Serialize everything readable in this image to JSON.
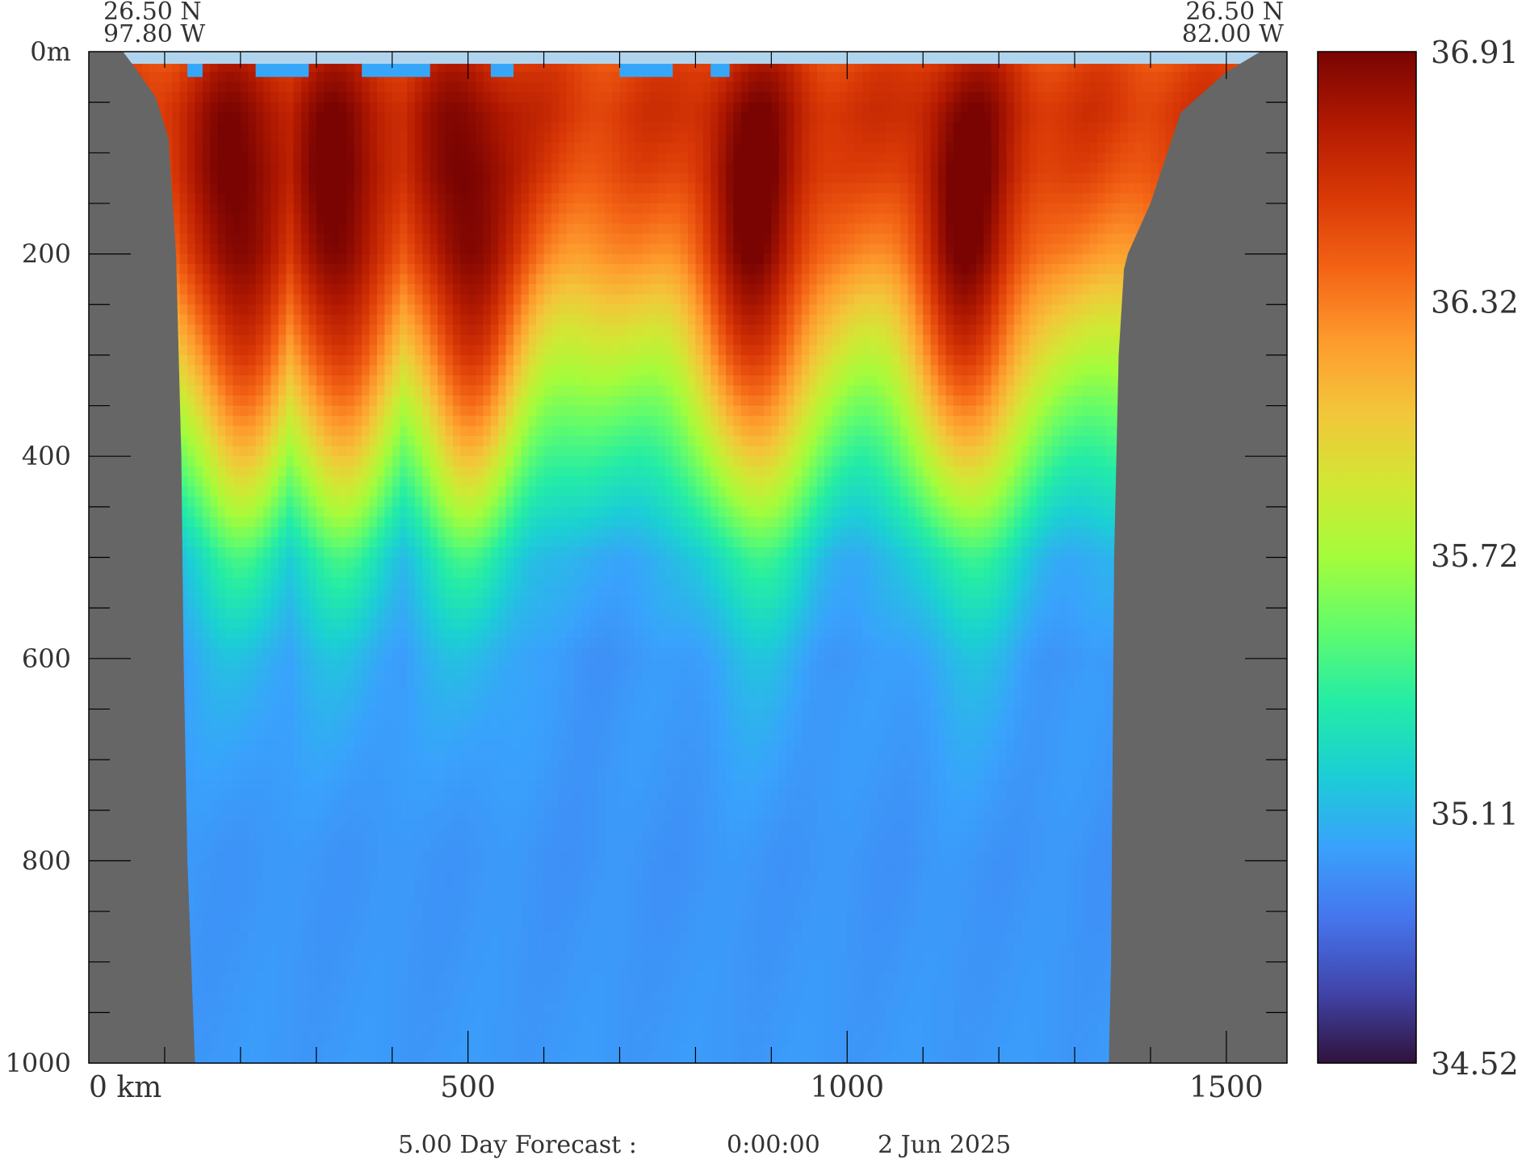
{
  "chart_data": {
    "type": "heatmap",
    "title": "",
    "xlabel": "",
    "ylabel": "",
    "x_unit": "km",
    "y_unit": "m",
    "xlim": [
      0,
      1580
    ],
    "ylim": [
      0,
      1000
    ],
    "x_ticks": [
      {
        "value": 0,
        "label": "0  km"
      },
      {
        "value": 500,
        "label": "500"
      },
      {
        "value": 1000,
        "label": "1000"
      },
      {
        "value": 1500,
        "label": "1500"
      }
    ],
    "x_minor_ticks": [
      100,
      200,
      300,
      400,
      600,
      700,
      800,
      900,
      1100,
      1200,
      1300,
      1400
    ],
    "y_ticks": [
      {
        "value": 0,
        "label": "0m"
      },
      {
        "value": 200,
        "label": "200"
      },
      {
        "value": 400,
        "label": "400"
      },
      {
        "value": 600,
        "label": "600"
      },
      {
        "value": 800,
        "label": "800"
      },
      {
        "value": 1000,
        "label": "1000"
      }
    ],
    "y_minor_ticks": [
      50,
      100,
      150,
      250,
      300,
      350,
      450,
      500,
      550,
      650,
      700,
      750,
      850,
      900,
      950
    ],
    "section_start": {
      "lat": "26.50 N",
      "lon": "97.80 W"
    },
    "section_end": {
      "lat": "26.50 N",
      "lon": "82.00 W"
    },
    "colorbar": {
      "min": 34.52,
      "max": 36.91,
      "labels": [
        "36.91",
        "36.32",
        "35.72",
        "35.11",
        "34.52"
      ],
      "label_values": [
        36.91,
        36.32,
        35.72,
        35.11,
        34.52
      ],
      "colormap": [
        "#30123b",
        "#4145ab",
        "#4675ed",
        "#39a2fc",
        "#1bcfd4",
        "#24eca6",
        "#61fc6c",
        "#a4fc3b",
        "#d1e834",
        "#f3c63a",
        "#fe9b2d",
        "#f36315",
        "#d93806",
        "#b11901",
        "#7a0402"
      ]
    },
    "land_color": "#666666",
    "surface_strip_color": "#b0d4ee",
    "bathymetry": {
      "west_coast": [
        [
          0,
          0
        ],
        [
          45,
          0
        ],
        [
          60,
          15
        ],
        [
          88,
          45
        ],
        [
          105,
          85
        ],
        [
          115,
          200
        ],
        [
          122,
          400
        ],
        [
          125,
          600
        ],
        [
          130,
          800
        ],
        [
          140,
          1000
        ]
      ],
      "east_coast": [
        [
          1580,
          0
        ],
        [
          1545,
          0
        ],
        [
          1500,
          20
        ],
        [
          1440,
          60
        ],
        [
          1400,
          150
        ],
        [
          1370,
          200
        ],
        [
          1365,
          215
        ],
        [
          1358,
          300
        ],
        [
          1352,
          500
        ],
        [
          1350,
          700
        ],
        [
          1348,
          900
        ],
        [
          1345,
          1000
        ]
      ]
    },
    "profile": {
      "description_values_psu": true,
      "depths": [
        0,
        20,
        60,
        120,
        200,
        300,
        400,
        500,
        600,
        800,
        1000
      ],
      "mean_values": [
        36.45,
        36.55,
        36.62,
        36.58,
        36.42,
        36.05,
        35.62,
        35.18,
        35.02,
        34.98,
        35.0
      ]
    },
    "surface_fresh_patches": [
      [
        130,
        150
      ],
      [
        220,
        290
      ],
      [
        360,
        450
      ],
      [
        530,
        560
      ],
      [
        700,
        770
      ],
      [
        820,
        845
      ]
    ],
    "high_salinity_core_km": [
      200,
      330,
      500,
      880,
      1160
    ],
    "footer": {
      "forecast": "5.00 Day Forecast :",
      "time": "0:00:00",
      "date": "2 Jun 2025"
    }
  }
}
